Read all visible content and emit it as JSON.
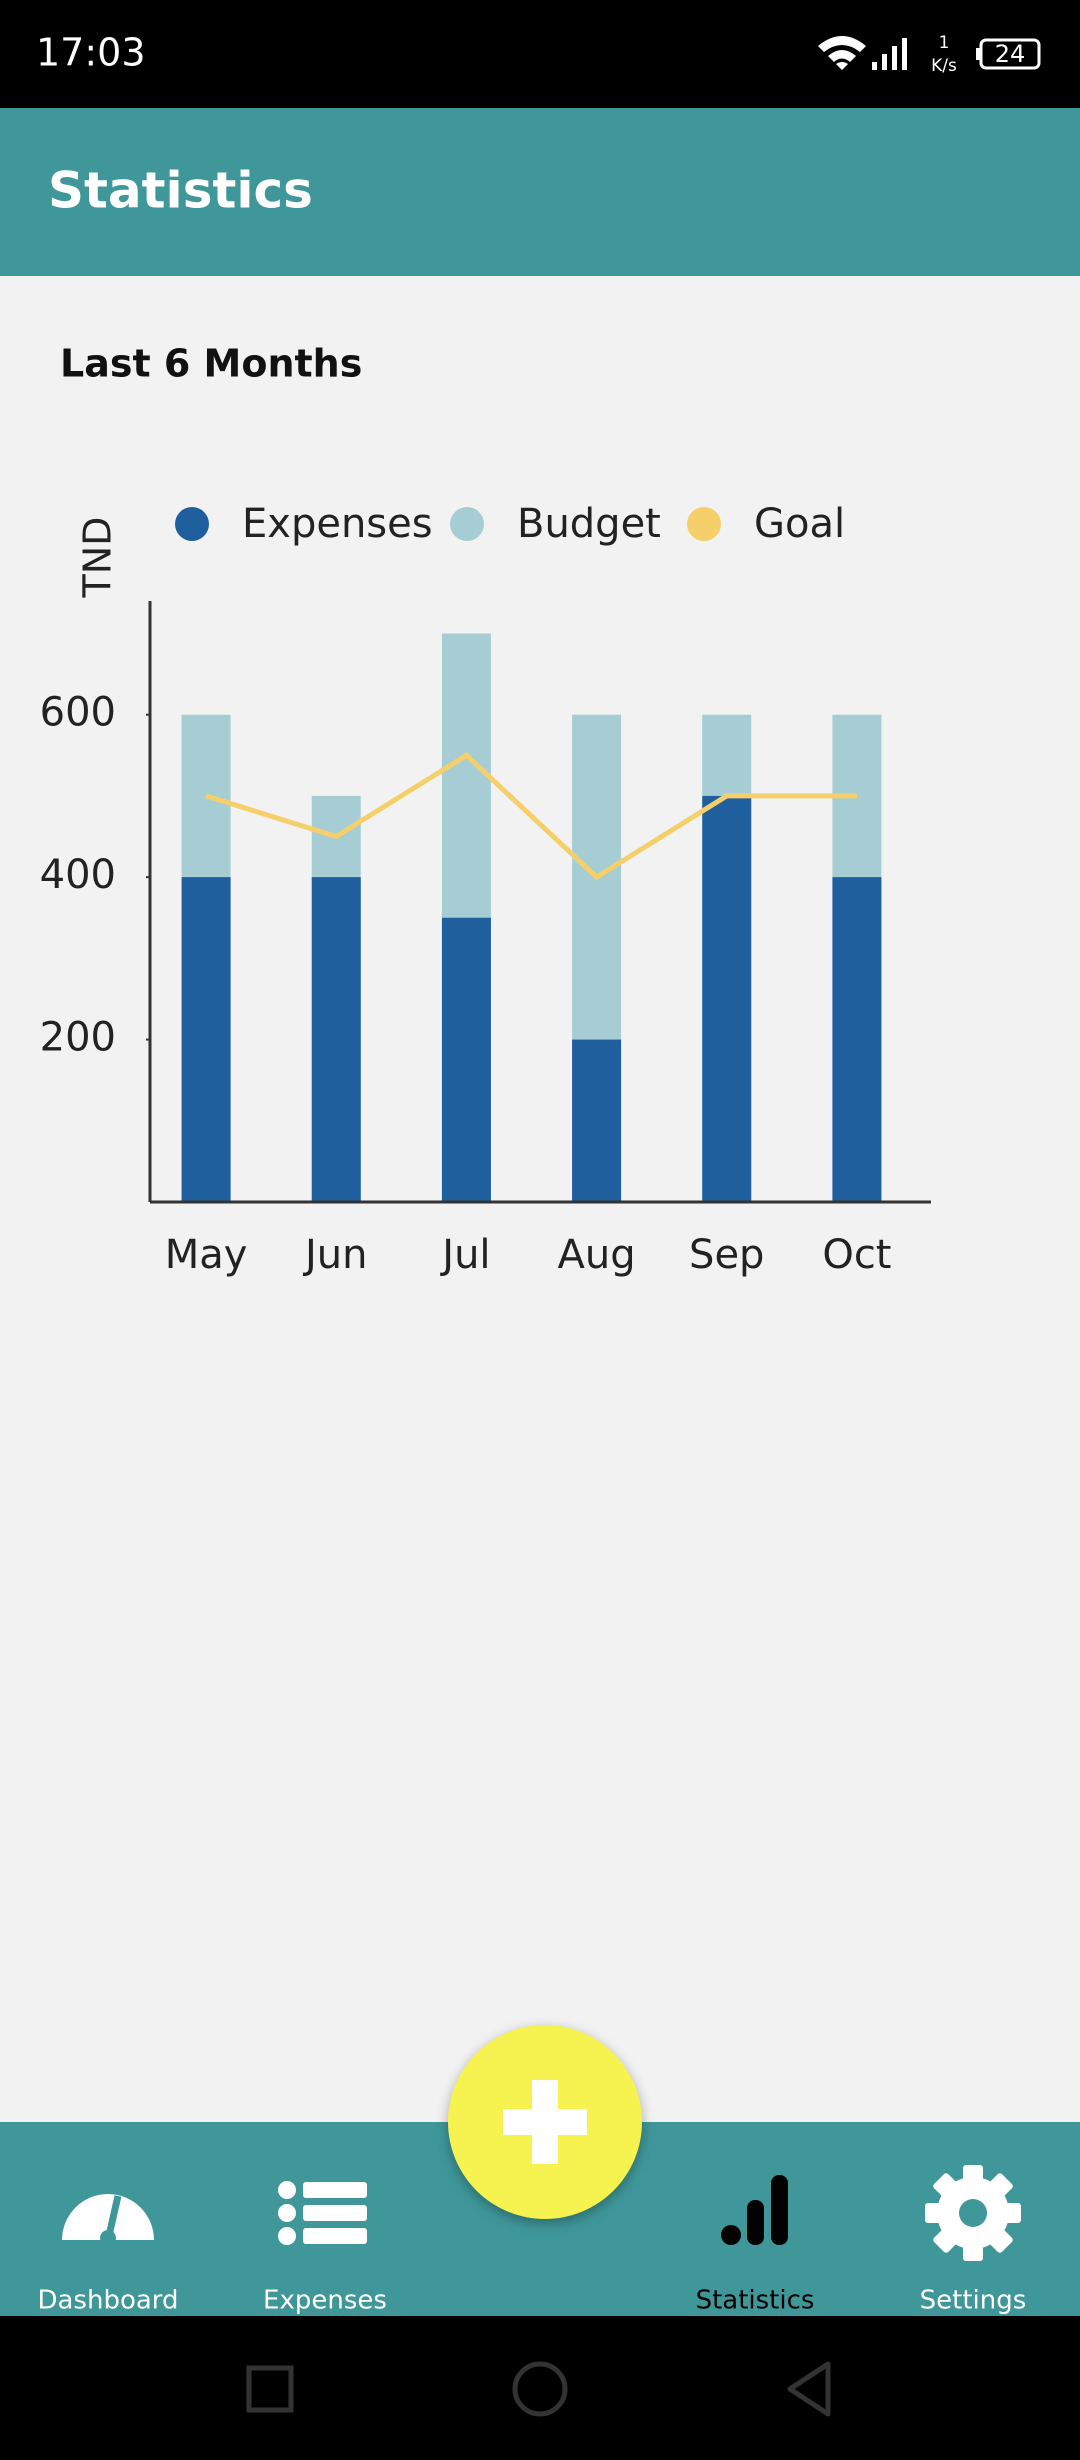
{
  "status_bar": {
    "time": "17:03",
    "net_speed": "1",
    "net_unit": "K/s",
    "battery": "24"
  },
  "app_bar": {
    "title": "Statistics"
  },
  "section": {
    "title": "Last 6 Months"
  },
  "chart_data": {
    "type": "bar",
    "y_label": "TND",
    "categories": [
      "May",
      "Jun",
      "Jul",
      "Aug",
      "Sep",
      "Oct"
    ],
    "series": [
      {
        "name": "Expenses",
        "color": "#1f5f9e",
        "values": [
          400,
          400,
          350,
          200,
          500,
          400
        ]
      },
      {
        "name": "Budget",
        "color": "#a5cdd3",
        "values": [
          600,
          500,
          700,
          600,
          600,
          600
        ]
      },
      {
        "name": "Goal",
        "color": "#f5d06a",
        "type": "line",
        "values": [
          500,
          450,
          550,
          400,
          500,
          500
        ]
      }
    ],
    "ylim": [
      0,
      740
    ],
    "yticks": [
      200,
      400,
      600
    ],
    "grid": false,
    "legend": "top"
  },
  "nav": {
    "items": [
      "Dashboard",
      "Expenses",
      "Statistics",
      "Settings"
    ],
    "active": 2
  }
}
